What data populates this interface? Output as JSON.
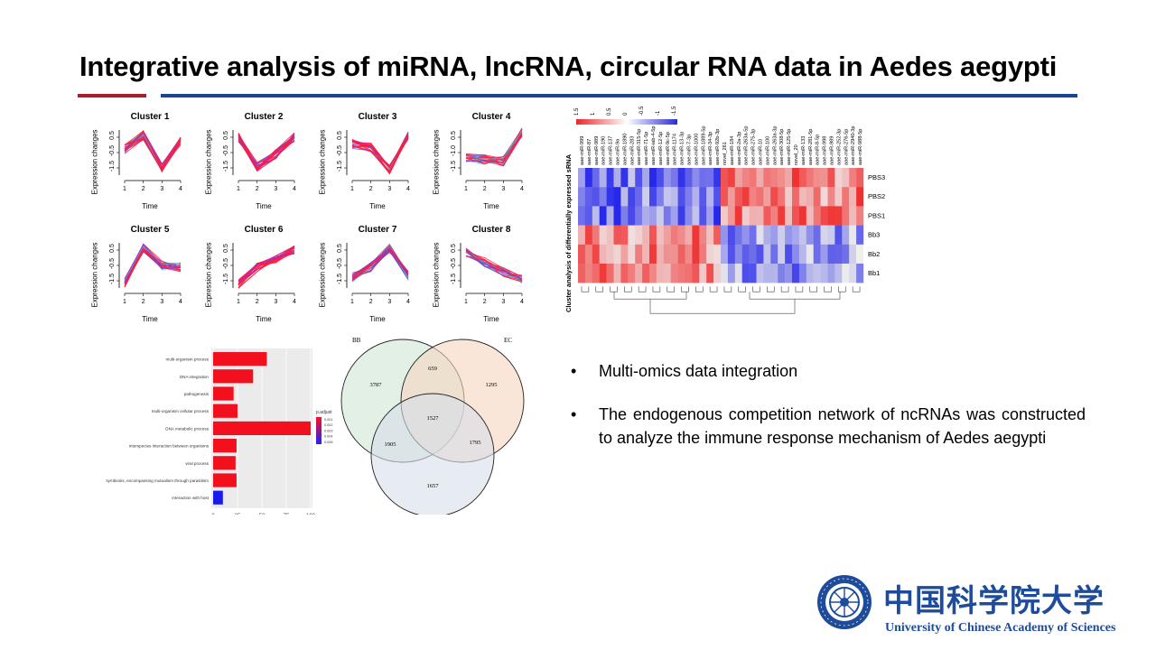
{
  "slide": {
    "title": "Integrative analysis of miRNA, lncRNA, circular RNA data in Aedes aegypti",
    "colors": {
      "accent_red": "#a5202b",
      "accent_blue": "#1c4591",
      "logo_blue": "#1e4b9a"
    }
  },
  "clusters": {
    "xlabel": "Time",
    "ylabel": "Expression changes",
    "x_ticks": [
      "1",
      "2",
      "3",
      "4"
    ],
    "items": [
      {
        "title": "Cluster 1",
        "y_ticks": [
          "0.5",
          "-0.5",
          "-1.5"
        ],
        "profile": [
          0.2,
          1.0,
          -0.9,
          0.7
        ]
      },
      {
        "title": "Cluster 2",
        "y_ticks": [
          "0.5",
          "-0.5",
          "-1.5"
        ],
        "profile": [
          0.9,
          -0.8,
          -0.1,
          0.9
        ]
      },
      {
        "title": "Cluster 3",
        "y_ticks": [
          "0.5",
          "-0.5",
          "-1.5"
        ],
        "profile": [
          0.5,
          0.3,
          -1.0,
          1.0
        ]
      },
      {
        "title": "Cluster 4",
        "y_ticks": [
          "0.5",
          "-1.0",
          "-1.5"
        ],
        "profile": [
          -0.3,
          -0.4,
          -0.5,
          1.2
        ]
      },
      {
        "title": "Cluster 5",
        "y_ticks": [
          "0.5",
          "-0.5",
          "-1.5"
        ],
        "profile": [
          -1.0,
          1.0,
          0.0,
          -0.1
        ]
      },
      {
        "title": "Cluster 6",
        "y_ticks": [
          "0.5",
          "-0.5",
          "-1.5"
        ],
        "profile": [
          -1.1,
          -0.1,
          0.4,
          0.9
        ]
      },
      {
        "title": "Cluster 7",
        "y_ticks": [
          "0.5",
          "-0.5",
          "-1.5"
        ],
        "profile": [
          -0.7,
          -0.1,
          1.0,
          -0.6
        ]
      },
      {
        "title": "Cluster 8",
        "y_ticks": [
          "0.5",
          "-0.5",
          "-1.5"
        ],
        "profile": [
          0.8,
          0.2,
          -0.4,
          -0.8
        ]
      }
    ]
  },
  "heatmap": {
    "side_label": "Cluster analysis of differentially expressed sRNA",
    "legend_ticks": [
      "1.5",
      "1",
      "0.5",
      "0",
      "-0.5",
      "-1",
      "-1.5"
    ],
    "rows": [
      "PBS3",
      "PBS2",
      "PBS1",
      "Bb3",
      "Bb2",
      "Bb1"
    ],
    "columns": [
      "aae-miR-999",
      "aae-miR-87",
      "aae-miR-989",
      "aae-miR-190",
      "aae-miR-137",
      "aae-miR-9a",
      "aae-miR-1890",
      "aae-miR-283",
      "aae-miR-315-5p",
      "aae-miR-71-5p",
      "aae-miR-iab-4-5p",
      "aae-miR-12-5p",
      "aae-miR-9c-5p",
      "aae-miR-1174",
      "aae-miR-13-3p",
      "aae-miR-7-3p",
      "aae-miR-1000",
      "aae-miR-1889-5p",
      "aae-miR-34-3p",
      "aae-miR-92b-3p",
      "novel_261",
      "aae-miR-184",
      "aae-miR-2a-3p",
      "aae-miR-263a-5p",
      "aae-miR-275-3p",
      "aae-miR-10",
      "aae-miR-100",
      "aae-miR-263a-3p",
      "aae-miR-308-5p",
      "aae-miR-125-5p",
      "novel_20",
      "aae-miR-133",
      "aae-miR-281-5p",
      "aae-miR-8-5p",
      "aae-miR-998",
      "aae-miR-989",
      "aae-miR-252-3p",
      "aae-miR-276-5p",
      "aae-miR-2940-3p",
      "aae-miR-988-5p"
    ]
  },
  "go_chart": {
    "legend_title": "p.adjust",
    "legend_ticks": [
      "0.001",
      "0.002",
      "0.003",
      "0.004",
      "0.005"
    ],
    "x_ticks": [
      "0",
      "25",
      "50",
      "75",
      "100"
    ],
    "terms": [
      {
        "label": "multi-organism process",
        "value": 55,
        "color": "#f2101e"
      },
      {
        "label": "DNA integration",
        "value": 41,
        "color": "#f2101e"
      },
      {
        "label": "pathogenesis",
        "value": 21,
        "color": "#f2101e"
      },
      {
        "label": "multi-organism cellular process",
        "value": 25,
        "color": "#f2101e"
      },
      {
        "label": "DNA metabolic process",
        "value": 100,
        "color": "#f2101e"
      },
      {
        "label": "interspecies interaction between organisms",
        "value": 24,
        "color": "#f2101e"
      },
      {
        "label": "viral process",
        "value": 23,
        "color": "#f2101e"
      },
      {
        "label": "symbiosis, encompassing mutualism through parasitism",
        "value": 24,
        "color": "#f2101e"
      },
      {
        "label": "interaction with host",
        "value": 10,
        "color": "#1a1aee"
      }
    ]
  },
  "venn": {
    "sets": [
      {
        "label": "BB",
        "color": "#cfe6d5"
      },
      {
        "label": "EC",
        "color": "#f6d5bf"
      },
      {
        "label": "",
        "color": "#d7deea"
      }
    ],
    "counts": {
      "bb_only": "3787",
      "ec_only": "1295",
      "third_only": "1657",
      "bb_ec": "659",
      "bb_third": "1905",
      "ec_third": "1795",
      "all": "1527"
    }
  },
  "bullets": [
    {
      "marker": "•",
      "text": "Multi-omics data integration"
    },
    {
      "marker": "•",
      "text": "The endogenous competition network of ncRNAs was constructed to analyze the immune  response mechanism of Aedes aegypti"
    }
  ],
  "logo": {
    "chinese_name": "中国科学院大学",
    "english_name": "University of  Chinese Academy of Sciences"
  }
}
